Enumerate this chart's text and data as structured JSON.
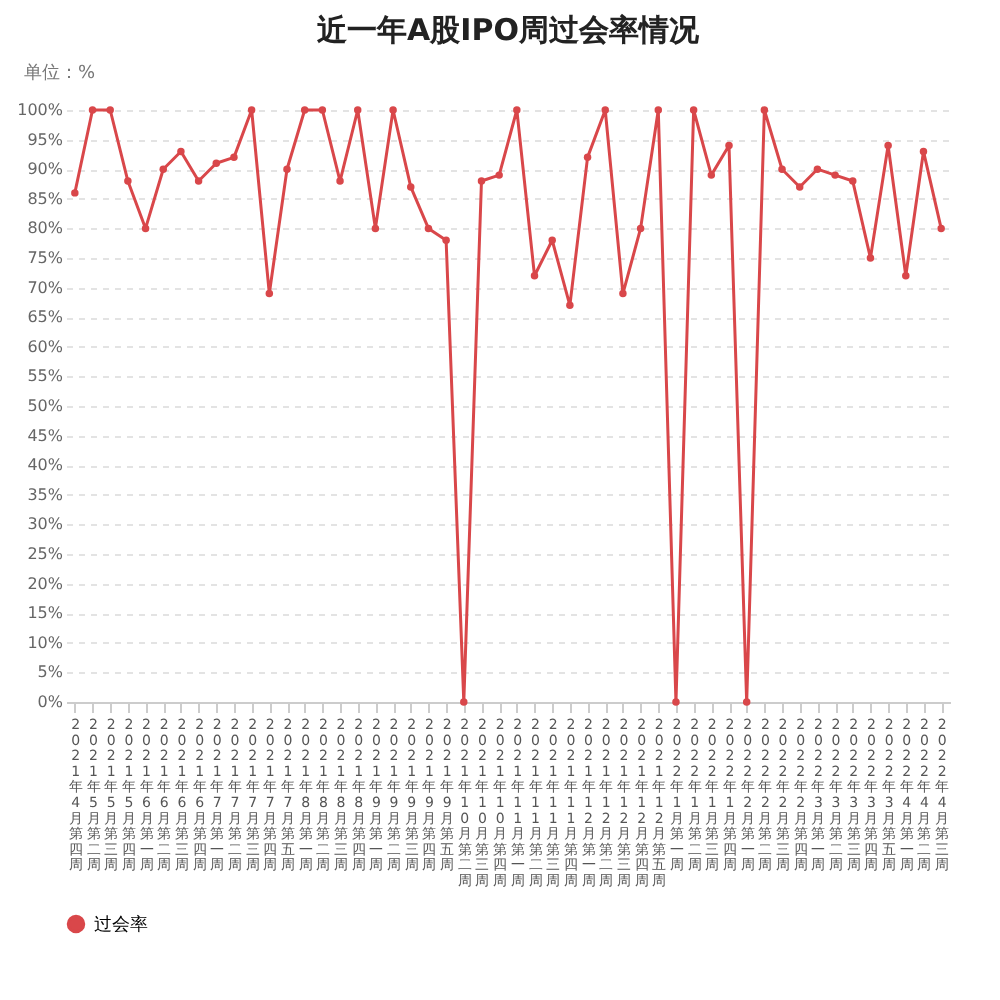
{
  "chart_data": {
    "type": "line",
    "title": "近一年A股IPO周过会率情况",
    "annotations": [
      "单位：%"
    ],
    "categories": [
      "2021年4月第四周",
      "2021年5月第二周",
      "2021年5月第三周",
      "2021年5月第四周",
      "2021年6月第一周",
      "2021年6月第二周",
      "2021年6月第三周",
      "2021年6月第四周",
      "2021年7月第一周",
      "2021年7月第二周",
      "2021年7月第三周",
      "2021年7月第四周",
      "2021年7月第五周",
      "2021年8月第一周",
      "2021年8月第二周",
      "2021年8月第三周",
      "2021年8月第四周",
      "2021年9月第一周",
      "2021年9月第二周",
      "2021年9月第三周",
      "2021年9月第四周",
      "2021年9月第五周",
      "2021年10月第二周",
      "2021年10月第三周",
      "2021年10月第四周",
      "2021年11月第一周",
      "2021年11月第二周",
      "2021年11月第三周",
      "2021年11月第四周",
      "2021年12月第一周",
      "2021年12月第二周",
      "2021年12月第三周",
      "2021年12月第四周",
      "2021年12月第五周",
      "2022年1月第一周",
      "2022年1月第二周",
      "2022年1月第三周",
      "2022年1月第四周",
      "2022年2月第一周",
      "2022年2月第二周",
      "2022年2月第三周",
      "2022年2月第四周",
      "2022年3月第一周",
      "2022年3月第二周",
      "2022年3月第三周",
      "2022年3月第四周",
      "2022年3月第五周",
      "2022年4月第一周",
      "2022年4月第二周",
      "2022年4月第三周"
    ],
    "series": [
      {
        "name": "过会率",
        "color": "#d9474a",
        "values": [
          86,
          100,
          100,
          88,
          80,
          90,
          93,
          88,
          91,
          92,
          100,
          69,
          90,
          100,
          100,
          88,
          100,
          80,
          100,
          87,
          80,
          78,
          0,
          88,
          89,
          100,
          72,
          78,
          67,
          92,
          100,
          69,
          80,
          100,
          0,
          100,
          89,
          94,
          0,
          100,
          90,
          87,
          90,
          89,
          88,
          75,
          94,
          72,
          93,
          80
        ]
      }
    ],
    "ylim": [
      0,
      100
    ],
    "yticks": [
      {
        "value": 0,
        "label": "0%"
      },
      {
        "value": 5,
        "label": "5%"
      },
      {
        "value": 10,
        "label": "10%"
      },
      {
        "value": 15,
        "label": "15%"
      },
      {
        "value": 20,
        "label": "20%"
      },
      {
        "value": 25,
        "label": "25%"
      },
      {
        "value": 30,
        "label": "30%"
      },
      {
        "value": 35,
        "label": "35%"
      },
      {
        "value": 40,
        "label": "40%"
      },
      {
        "value": 45,
        "label": "45%"
      },
      {
        "value": 50,
        "label": "50%"
      },
      {
        "value": 55,
        "label": "55%"
      },
      {
        "value": 60,
        "label": "60%"
      },
      {
        "value": 65,
        "label": "65%"
      },
      {
        "value": 70,
        "label": "70%"
      },
      {
        "value": 75,
        "label": "75%"
      },
      {
        "value": 80,
        "label": "80%"
      },
      {
        "value": 85,
        "label": "85%"
      },
      {
        "value": 90,
        "label": "90%"
      },
      {
        "value": 95,
        "label": "95%"
      },
      {
        "value": 100,
        "label": "100%"
      }
    ],
    "grid": "y",
    "legend": "bottom",
    "marker": "circle",
    "line_style": "solid"
  }
}
